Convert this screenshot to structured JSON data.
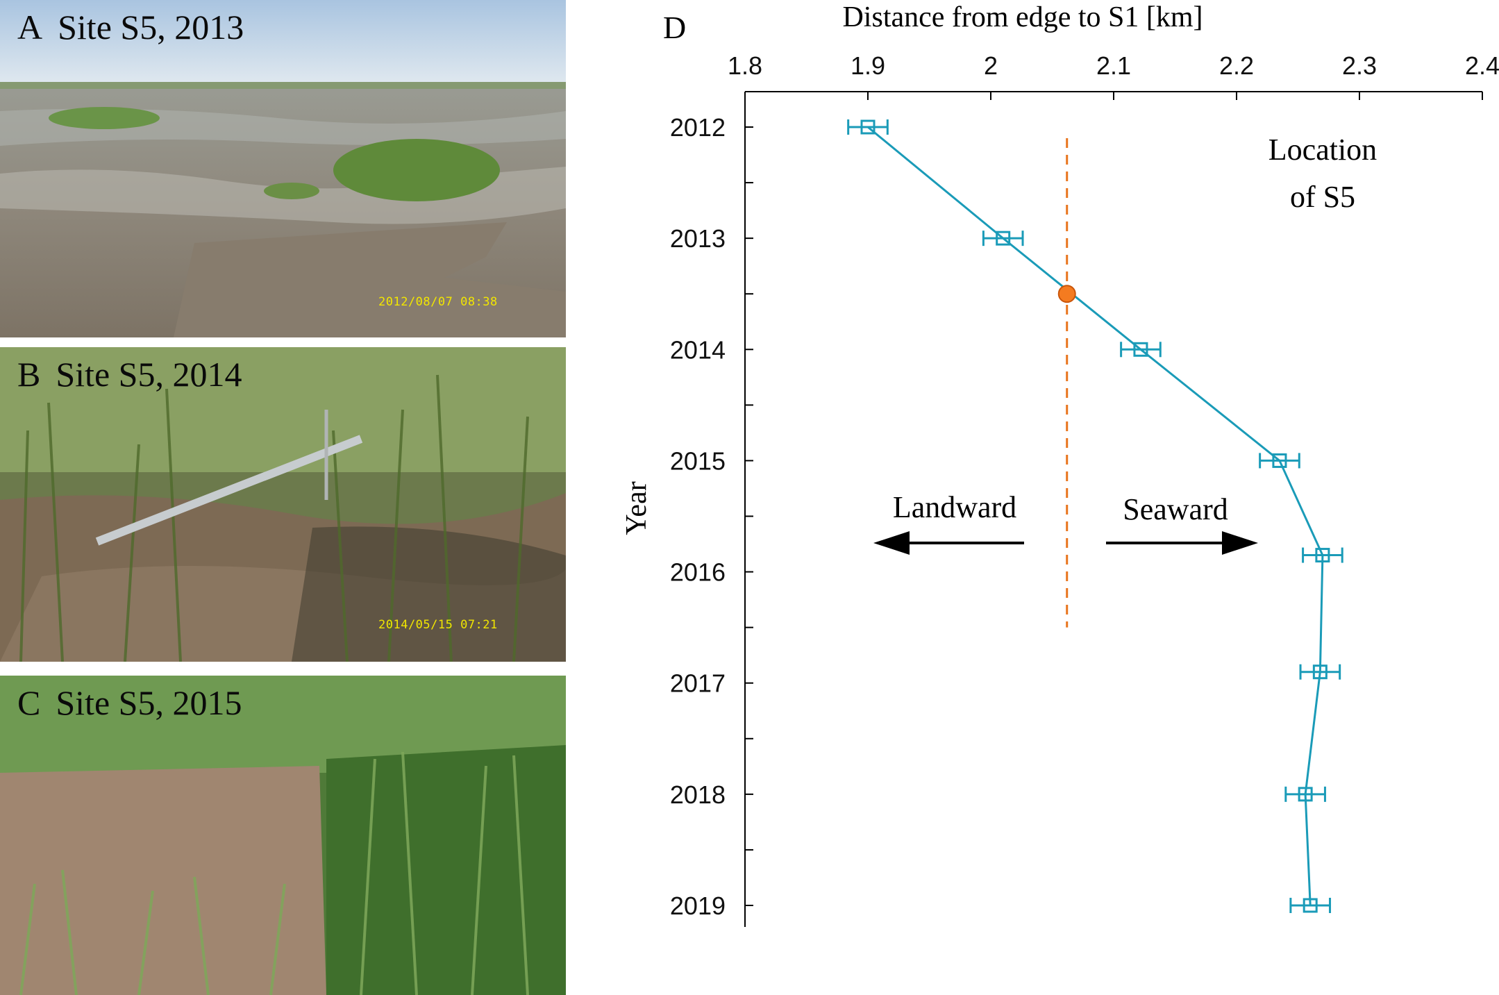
{
  "panels": [
    {
      "letter": "A",
      "title": "Site S5, 2013",
      "timestamp": "2012/08/07 08:38"
    },
    {
      "letter": "B",
      "title": "Site S5, 2014",
      "timestamp": "2014/05/15 07:21"
    },
    {
      "letter": "C",
      "title": "Site S5, 2015",
      "timestamp": ""
    }
  ],
  "chart_data": {
    "type": "line",
    "panel_letter": "D",
    "title": "",
    "xlabel": "Distance from edge to S1 [km]",
    "ylabel": "Year",
    "xlim": [
      1.8,
      2.4
    ],
    "ylim": [
      2012,
      2019
    ],
    "y_reversed": true,
    "x_axis_position": "top",
    "x_ticks": [
      "1.8",
      "1.9",
      "2",
      "2.1",
      "2.2",
      "2.3",
      "2.4"
    ],
    "y_ticks": [
      "2012",
      "2013",
      "2014",
      "2015",
      "2016",
      "2017",
      "2018",
      "2019"
    ],
    "grid": false,
    "series": [
      {
        "color": "#1a9bb8",
        "marker": "square",
        "points": [
          {
            "year": 2012.0,
            "distance": 1.9,
            "err": 0.016
          },
          {
            "year": 2013.0,
            "distance": 2.01,
            "err": 0.016
          },
          {
            "year": 2014.0,
            "distance": 2.122,
            "err": 0.016
          },
          {
            "year": 2015.0,
            "distance": 2.235,
            "err": 0.016
          },
          {
            "year": 2015.85,
            "distance": 2.27,
            "err": 0.016
          },
          {
            "year": 2016.9,
            "distance": 2.268,
            "err": 0.016
          },
          {
            "year": 2018.0,
            "distance": 2.256,
            "err": 0.016
          },
          {
            "year": 2019.0,
            "distance": 2.26,
            "err": 0.016
          }
        ]
      }
    ],
    "s5_location": {
      "x": 2.062,
      "y_range": [
        2012.1,
        2016.5
      ],
      "color": "#e8741c"
    },
    "crossing_marker": {
      "x": 2.062,
      "year": 2013.5,
      "color": "#f47b20"
    },
    "annotations": {
      "location_line1": "Location",
      "location_line2": "of S5",
      "landward": "Landward",
      "seaward": "Seaward"
    }
  }
}
